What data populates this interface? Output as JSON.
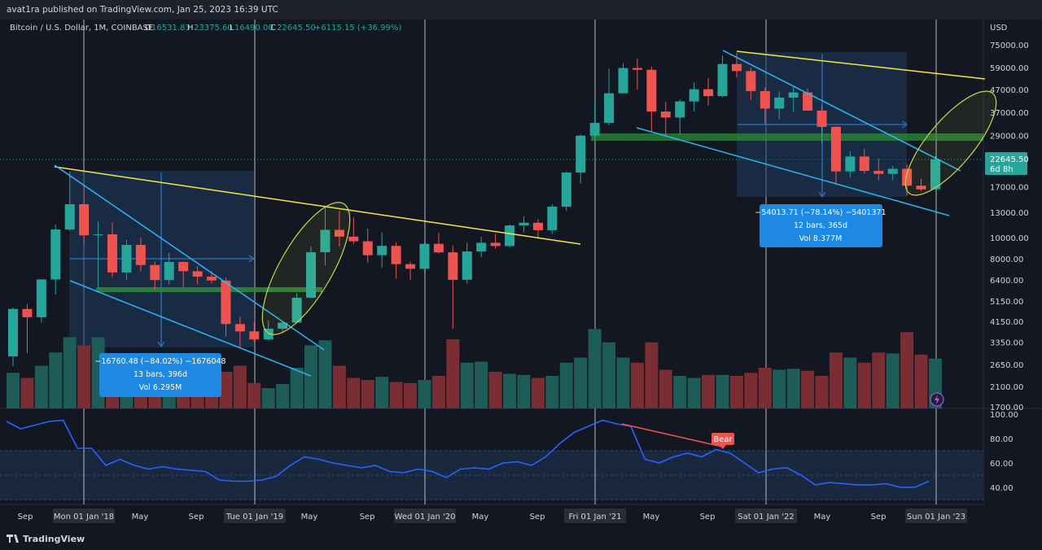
{
  "header": {
    "published": "avat1ra published on TradingView.com, Jan 25, 2023 16:39 UTC"
  },
  "legend": {
    "symbol": "Bitcoin / U.S. Dollar, 1M, COINBASE",
    "o_label": "O",
    "o_val": "16531.83",
    "h_label": "H",
    "h_val": "23375.60",
    "l_label": "L",
    "l_val": "16490.00",
    "c_label": "C",
    "c_val": "22645.50",
    "change": "+6115.15 (+36.99%)"
  },
  "price_axis": {
    "currency": "USD",
    "ticks": [
      "75000.00",
      "59000.00",
      "47000.00",
      "37000.00",
      "29000.00",
      "17000.00",
      "13000.00",
      "10000.00",
      "8000.00",
      "6400.00",
      "5150.00",
      "4150.00",
      "3350.00",
      "2650.00",
      "2100.00",
      "1700.00"
    ],
    "last_price": "22645.50",
    "countdown": "6d 8h"
  },
  "rsi_axis": {
    "ticks": [
      "100.00",
      "80.00",
      "60.00",
      "40.00"
    ]
  },
  "time_axis": {
    "labels": [
      "Sep",
      "Mon 01 Jan '18",
      "May",
      "Sep",
      "Tue 01 Jan '19",
      "May",
      "Sep",
      "Wed 01 Jan '20",
      "May",
      "Sep",
      "Fri 01 Jan '21",
      "May",
      "Sep",
      "Sat 01 Jan '22",
      "May",
      "Sep",
      "Sun 01 Jan '23"
    ]
  },
  "annotations": {
    "measure1": {
      "line1": "−16760.48 (−84.02%) −1676048",
      "line2": "13 bars, 396d",
      "line3": "Vol 6.295M"
    },
    "measure2": {
      "line1": "−54013.71 (−78.14%) −5401371",
      "line2": "12 bars, 365d",
      "line3": "Vol 8.377M"
    },
    "bear_label": "Bear"
  },
  "footer": {
    "brand": "TradingView",
    "logo": "tv-logo-icon"
  },
  "colors": {
    "background": "#131722",
    "up": "#26a69a",
    "down": "#ef5350",
    "vol_up": "#1e5d57",
    "vol_down": "#7a2e33",
    "rsi": "#2962ff",
    "trend_yellow": "#f5e642",
    "channel_blue": "#29b6f6",
    "support_green": "#2e8b3a",
    "measure_box": "#1f3a5f",
    "label_blue": "#1e88e5"
  },
  "chart_data": {
    "type": "candlestick",
    "title": "Bitcoin / U.S. Dollar, 1M, COINBASE",
    "scale": "log",
    "ylim": [
      1700,
      75000
    ],
    "x_start": "2017-08",
    "x_end": "2023-01",
    "candles": [
      {
        "t": "2017-08",
        "o": 2880,
        "h": 4800,
        "l": 2600,
        "c": 4730
      },
      {
        "t": "2017-09",
        "o": 4730,
        "h": 4980,
        "l": 2980,
        "c": 4340
      },
      {
        "t": "2017-10",
        "o": 4340,
        "h": 6470,
        "l": 4100,
        "c": 6440
      },
      {
        "t": "2017-11",
        "o": 6440,
        "h": 11400,
        "l": 5500,
        "c": 10860
      },
      {
        "t": "2017-12",
        "o": 10860,
        "h": 19890,
        "l": 10700,
        "c": 14150
      },
      {
        "t": "2018-01",
        "o": 14150,
        "h": 17250,
        "l": 9240,
        "c": 10220
      },
      {
        "t": "2018-02",
        "o": 10220,
        "h": 11790,
        "l": 5920,
        "c": 10320
      },
      {
        "t": "2018-03",
        "o": 10320,
        "h": 11700,
        "l": 6600,
        "c": 6930
      },
      {
        "t": "2018-04",
        "o": 6930,
        "h": 9760,
        "l": 6430,
        "c": 9240
      },
      {
        "t": "2018-05",
        "o": 9240,
        "h": 9990,
        "l": 7030,
        "c": 7490
      },
      {
        "t": "2018-06",
        "o": 7490,
        "h": 7760,
        "l": 5780,
        "c": 6400
      },
      {
        "t": "2018-07",
        "o": 6400,
        "h": 8500,
        "l": 6110,
        "c": 7730
      },
      {
        "t": "2018-08",
        "o": 7730,
        "h": 7770,
        "l": 5880,
        "c": 7020
      },
      {
        "t": "2018-09",
        "o": 7020,
        "h": 7410,
        "l": 6110,
        "c": 6630
      },
      {
        "t": "2018-10",
        "o": 6630,
        "h": 7000,
        "l": 6180,
        "c": 6370
      },
      {
        "t": "2018-11",
        "o": 6370,
        "h": 6580,
        "l": 3550,
        "c": 4040
      },
      {
        "t": "2018-12",
        "o": 4040,
        "h": 4360,
        "l": 3130,
        "c": 3740
      },
      {
        "t": "2019-01",
        "o": 3740,
        "h": 4110,
        "l": 3350,
        "c": 3440
      },
      {
        "t": "2019-02",
        "o": 3440,
        "h": 4200,
        "l": 3400,
        "c": 3850
      },
      {
        "t": "2019-03",
        "o": 3850,
        "h": 4140,
        "l": 3670,
        "c": 4100
      },
      {
        "t": "2019-04",
        "o": 4100,
        "h": 5600,
        "l": 4080,
        "c": 5320
      },
      {
        "t": "2019-05",
        "o": 5320,
        "h": 9100,
        "l": 5280,
        "c": 8560
      },
      {
        "t": "2019-06",
        "o": 8560,
        "h": 13880,
        "l": 7450,
        "c": 10820
      },
      {
        "t": "2019-07",
        "o": 10820,
        "h": 13200,
        "l": 9100,
        "c": 10080
      },
      {
        "t": "2019-08",
        "o": 10080,
        "h": 12330,
        "l": 9320,
        "c": 9600
      },
      {
        "t": "2019-09",
        "o": 9600,
        "h": 10950,
        "l": 7710,
        "c": 8300
      },
      {
        "t": "2019-10",
        "o": 8300,
        "h": 10540,
        "l": 7300,
        "c": 9150
      },
      {
        "t": "2019-11",
        "o": 9150,
        "h": 9500,
        "l": 6510,
        "c": 7560
      },
      {
        "t": "2019-12",
        "o": 7560,
        "h": 7750,
        "l": 6420,
        "c": 7200
      },
      {
        "t": "2020-01",
        "o": 7200,
        "h": 9580,
        "l": 6850,
        "c": 9350
      },
      {
        "t": "2020-02",
        "o": 9350,
        "h": 10500,
        "l": 8450,
        "c": 8550
      },
      {
        "t": "2020-03",
        "o": 8550,
        "h": 9190,
        "l": 3850,
        "c": 6420
      },
      {
        "t": "2020-04",
        "o": 6420,
        "h": 9470,
        "l": 6160,
        "c": 8630
      },
      {
        "t": "2020-05",
        "o": 8630,
        "h": 10070,
        "l": 8140,
        "c": 9450
      },
      {
        "t": "2020-06",
        "o": 9450,
        "h": 10390,
        "l": 8900,
        "c": 9140
      },
      {
        "t": "2020-07",
        "o": 9140,
        "h": 11450,
        "l": 8980,
        "c": 11330
      },
      {
        "t": "2020-08",
        "o": 11330,
        "h": 12470,
        "l": 10530,
        "c": 11660
      },
      {
        "t": "2020-09",
        "o": 11660,
        "h": 12080,
        "l": 9860,
        "c": 10780
      },
      {
        "t": "2020-10",
        "o": 10780,
        "h": 14100,
        "l": 10370,
        "c": 13790
      },
      {
        "t": "2020-11",
        "o": 13790,
        "h": 19920,
        "l": 13210,
        "c": 19700
      },
      {
        "t": "2020-12",
        "o": 19700,
        "h": 29300,
        "l": 17570,
        "c": 28990
      },
      {
        "t": "2021-01",
        "o": 28990,
        "h": 41950,
        "l": 28130,
        "c": 33110
      },
      {
        "t": "2021-02",
        "o": 33110,
        "h": 58350,
        "l": 32300,
        "c": 45160
      },
      {
        "t": "2021-03",
        "o": 45160,
        "h": 61790,
        "l": 45000,
        "c": 58790
      },
      {
        "t": "2021-04",
        "o": 58790,
        "h": 64900,
        "l": 47000,
        "c": 57720
      },
      {
        "t": "2021-05",
        "o": 57720,
        "h": 59600,
        "l": 30000,
        "c": 37300
      },
      {
        "t": "2021-06",
        "o": 37300,
        "h": 41330,
        "l": 28800,
        "c": 35040
      },
      {
        "t": "2021-07",
        "o": 35040,
        "h": 42320,
        "l": 29280,
        "c": 41460
      },
      {
        "t": "2021-08",
        "o": 41460,
        "h": 50500,
        "l": 37330,
        "c": 47100
      },
      {
        "t": "2021-09",
        "o": 47100,
        "h": 52950,
        "l": 39600,
        "c": 43820
      },
      {
        "t": "2021-10",
        "o": 43820,
        "h": 67000,
        "l": 43320,
        "c": 61300
      },
      {
        "t": "2021-11",
        "o": 61300,
        "h": 69000,
        "l": 53250,
        "c": 56950
      },
      {
        "t": "2021-12",
        "o": 56950,
        "h": 59100,
        "l": 42000,
        "c": 46210
      },
      {
        "t": "2022-01",
        "o": 46210,
        "h": 47990,
        "l": 32930,
        "c": 38470
      },
      {
        "t": "2022-02",
        "o": 38470,
        "h": 45860,
        "l": 34300,
        "c": 43160
      },
      {
        "t": "2022-03",
        "o": 43160,
        "h": 48240,
        "l": 37160,
        "c": 45530
      },
      {
        "t": "2022-04",
        "o": 45530,
        "h": 47440,
        "l": 37700,
        "c": 37640
      },
      {
        "t": "2022-05",
        "o": 37640,
        "h": 40000,
        "l": 26700,
        "c": 31790
      },
      {
        "t": "2022-06",
        "o": 31790,
        "h": 31990,
        "l": 17590,
        "c": 19940
      },
      {
        "t": "2022-07",
        "o": 19940,
        "h": 24680,
        "l": 18780,
        "c": 23300
      },
      {
        "t": "2022-08",
        "o": 23300,
        "h": 25210,
        "l": 19520,
        "c": 20050
      },
      {
        "t": "2022-09",
        "o": 20050,
        "h": 22800,
        "l": 18150,
        "c": 19430
      },
      {
        "t": "2022-10",
        "o": 19430,
        "h": 21100,
        "l": 18200,
        "c": 20490
      },
      {
        "t": "2022-11",
        "o": 20490,
        "h": 21480,
        "l": 15480,
        "c": 17170
      },
      {
        "t": "2022-12",
        "o": 17170,
        "h": 18400,
        "l": 16250,
        "c": 16530
      },
      {
        "t": "2023-01",
        "o": 16531.83,
        "h": 23375.6,
        "l": 16490,
        "c": 22645.5
      }
    ],
    "volume": [
      0.35,
      0.3,
      0.42,
      0.55,
      0.7,
      0.62,
      0.7,
      0.52,
      0.28,
      0.25,
      0.22,
      0.27,
      0.25,
      0.24,
      0.2,
      0.36,
      0.42,
      0.25,
      0.2,
      0.24,
      0.4,
      0.62,
      0.67,
      0.42,
      0.3,
      0.28,
      0.31,
      0.26,
      0.25,
      0.28,
      0.32,
      0.68,
      0.45,
      0.46,
      0.36,
      0.34,
      0.33,
      0.3,
      0.32,
      0.45,
      0.5,
      0.78,
      0.65,
      0.5,
      0.45,
      0.65,
      0.38,
      0.32,
      0.3,
      0.33,
      0.33,
      0.32,
      0.35,
      0.4,
      0.38,
      0.39,
      0.37,
      0.32,
      0.55,
      0.5,
      0.45,
      0.55,
      0.54,
      0.75,
      0.53,
      0.49
    ],
    "rsi": [
      94,
      88,
      91,
      94,
      95,
      72,
      72,
      58,
      63,
      58,
      55,
      57,
      55,
      54,
      53,
      46,
      45,
      45,
      46,
      49,
      58,
      65,
      63,
      60,
      58,
      56,
      58,
      53,
      52,
      55,
      53,
      48,
      55,
      56,
      55,
      60,
      61,
      58,
      65,
      76,
      85,
      90,
      95,
      92,
      90,
      63,
      60,
      65,
      68,
      65,
      71,
      68,
      60,
      52,
      55,
      56,
      50,
      42,
      44,
      43,
      42,
      42,
      43,
      40,
      40,
      45
    ],
    "rsi_ticks": [
      100,
      80,
      60,
      40
    ],
    "rsi_band": [
      30,
      70
    ],
    "measurements": [
      {
        "from": "2017-12",
        "to": "2018-12",
        "change": "-16760.48 (-84.02%)",
        "bars": 13,
        "days": 396,
        "vol": "6.295M"
      },
      {
        "from": "2021-11",
        "to": "2022-11",
        "change": "-54013.71 (-78.14%)",
        "bars": 12,
        "days": 365,
        "vol": "8.377M"
      }
    ]
  }
}
